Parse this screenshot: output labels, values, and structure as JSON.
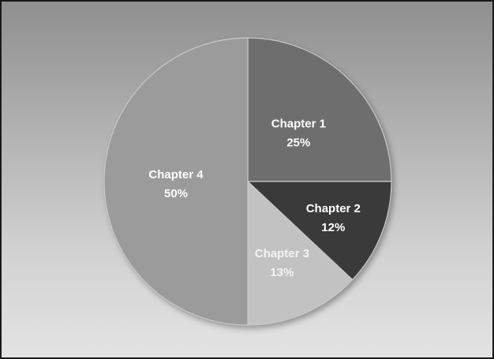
{
  "chart_data": {
    "type": "pie",
    "title": "",
    "start_angle_deg": 0,
    "direction": "clockwise",
    "slices": [
      {
        "label": "Chapter 1",
        "value": 25,
        "value_label": "25%",
        "color": "#6e6e6e",
        "text_color": "#ffffff"
      },
      {
        "label": "Chapter 2",
        "value": 12,
        "value_label": "12%",
        "color": "#3a3a3a",
        "text_color": "#ffffff"
      },
      {
        "label": "Chapter 3",
        "value": 13,
        "value_label": "13%",
        "color": "#c2c2c2",
        "text_color": "#f4f4f4"
      },
      {
        "label": "Chapter 4",
        "value": 50,
        "value_label": "50%",
        "color": "#9b9b9b",
        "text_color": "#ffffff"
      }
    ]
  }
}
